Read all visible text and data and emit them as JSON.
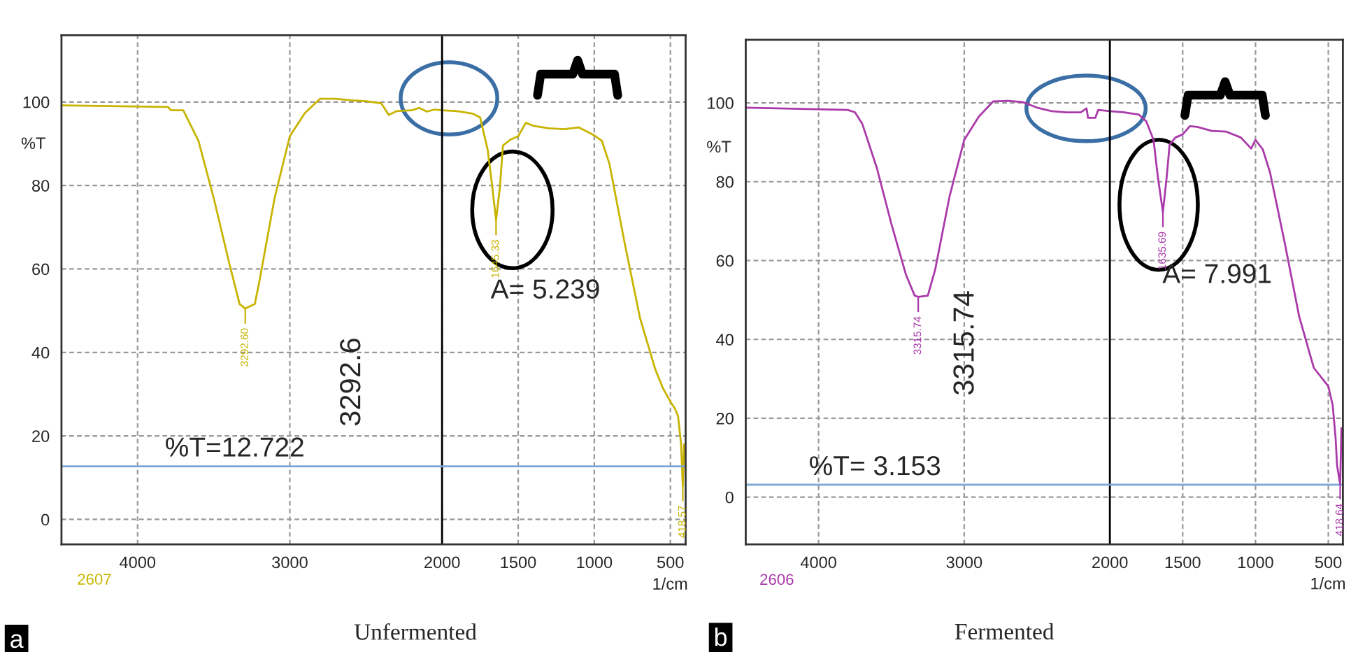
{
  "chart_data": [
    {
      "type": "line",
      "xlabel": "1/cm",
      "ylabel": "%T",
      "xlim": [
        4500,
        400
      ],
      "xticks": [
        4000,
        3000,
        2000,
        1500,
        1000,
        500
      ],
      "ylim": [
        -6,
        116
      ],
      "yticks": [
        0,
        20,
        40,
        60,
        80,
        100
      ],
      "grid": true,
      "legend": false,
      "series": [
        {
          "color": "#c8b400",
          "x": [
            4500,
            3800,
            3780,
            3700,
            3600,
            3500,
            3400,
            3330,
            3292.6,
            3230,
            3200,
            3100,
            3000,
            2900,
            2800,
            2700,
            2600,
            2500,
            2400,
            2350,
            2300,
            2200,
            2150,
            2100,
            2050,
            2000,
            1900,
            1800,
            1750,
            1700,
            1670,
            1645.33,
            1620,
            1600,
            1550,
            1500,
            1450,
            1400,
            1300,
            1200,
            1100,
            1000,
            950,
            900,
            800,
            700,
            600,
            550,
            500,
            470,
            450,
            430,
            418.57,
            410
          ],
          "values": [
            99.2,
            98.8,
            98,
            98,
            90.7,
            77,
            61.7,
            51.6,
            50.5,
            51.6,
            57,
            77,
            91.8,
            97.4,
            100.8,
            100.8,
            100.4,
            100.2,
            99.7,
            96.9,
            97.8,
            98,
            98.6,
            97.7,
            98.2,
            98,
            97.8,
            97.2,
            96.3,
            88.5,
            79.6,
            71.7,
            79.6,
            89.6,
            91,
            91.8,
            95,
            94.3,
            93.7,
            93.5,
            93.9,
            92,
            90.7,
            85.1,
            66.1,
            48.3,
            36,
            31.5,
            28.2,
            26.5,
            24.8,
            18.1,
            8,
            18
          ]
        }
      ],
      "ref_lines": [
        {
          "axis": "x",
          "value": 2000,
          "color": "#000000"
        },
        {
          "axis": "y",
          "value": 12.722,
          "label": "%T=12.722",
          "color": "#7ba7d8"
        }
      ],
      "annotations": [
        {
          "text": "3292.60",
          "x": 3292.6,
          "y": 50.5
        },
        {
          "text": "1645.33",
          "x": 1645.33,
          "y": 71.7
        },
        {
          "text": "418.57",
          "x": 418.57,
          "y": 8
        },
        "3292.6",
        "A= 5.239",
        "2607",
        "Unfermented",
        "a"
      ]
    },
    {
      "type": "line",
      "xlabel": "1/cm",
      "ylabel": "%T",
      "xlim": [
        4500,
        400
      ],
      "xticks": [
        4000,
        3000,
        2000,
        1500,
        1000,
        500
      ],
      "ylim": [
        -12,
        116
      ],
      "yticks": [
        0,
        20,
        40,
        60,
        80,
        100
      ],
      "grid": true,
      "legend": false,
      "series": [
        {
          "color": "#aa3aaa",
          "x": [
            4500,
            3800,
            3750,
            3700,
            3600,
            3500,
            3400,
            3340,
            3315.74,
            3250,
            3200,
            3100,
            3000,
            2900,
            2800,
            2700,
            2600,
            2500,
            2400,
            2300,
            2200,
            2160,
            2150,
            2100,
            2080,
            2000,
            1900,
            1800,
            1750,
            1700,
            1670,
            1635.69,
            1610,
            1590,
            1550,
            1500,
            1450,
            1400,
            1300,
            1200,
            1100,
            1030,
            1000,
            950,
            900,
            800,
            700,
            600,
            500,
            470,
            450,
            440,
            418.64,
            410
          ],
          "values": [
            98.8,
            98.2,
            97.6,
            94.7,
            83.5,
            69.3,
            56.4,
            51.1,
            50.8,
            51.1,
            57.6,
            76.4,
            90.6,
            96.5,
            100.4,
            100.5,
            100.2,
            98.8,
            97.9,
            97.6,
            97.6,
            98.6,
            96.2,
            96.2,
            98.2,
            97.9,
            97.6,
            97,
            95.3,
            90.6,
            81.1,
            72.3,
            81.1,
            89.4,
            91.2,
            92,
            94.1,
            93.9,
            92.9,
            92.7,
            91.2,
            88.4,
            90.6,
            88.2,
            82.3,
            64.6,
            45.8,
            32.8,
            28.1,
            23.3,
            15,
            8,
            3.3,
            17.5
          ]
        }
      ],
      "ref_lines": [
        {
          "axis": "x",
          "value": 2000,
          "color": "#000000"
        },
        {
          "axis": "y",
          "value": 3.153,
          "label": "%T= 3.153",
          "color": "#7ba7d8"
        }
      ],
      "annotations": [
        {
          "text": "3315.74",
          "x": 3315.74,
          "y": 50.8
        },
        {
          "text": "1635.69",
          "x": 1635.69,
          "y": 72.3
        },
        {
          "text": "418.64",
          "x": 418.64,
          "y": 3.3
        },
        "3315.74",
        "A= 7.991",
        "2606",
        "Fermented",
        "b"
      ]
    }
  ]
}
